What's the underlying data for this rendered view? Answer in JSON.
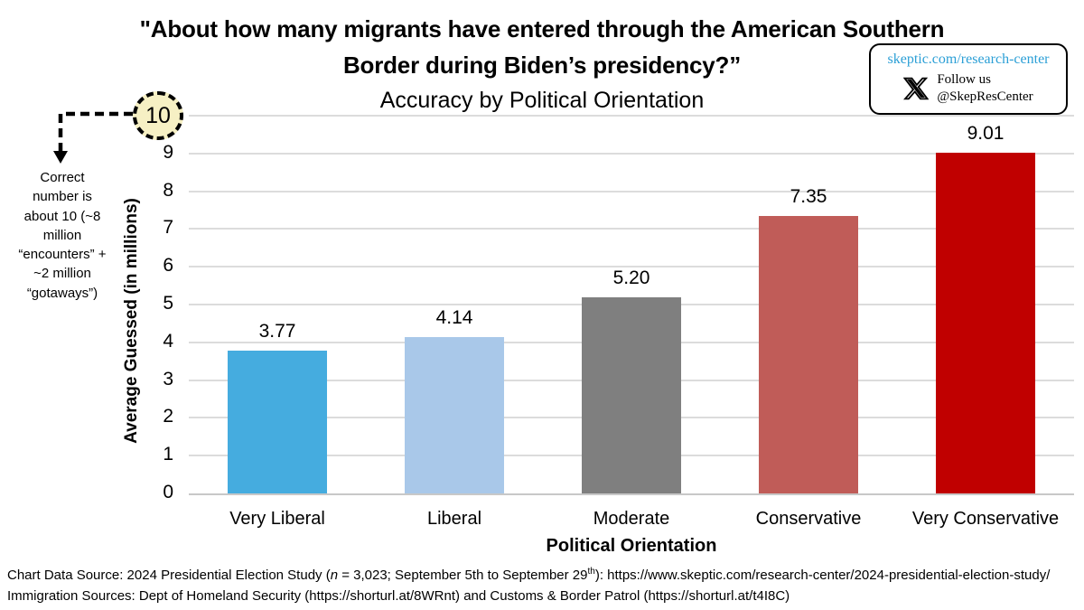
{
  "title": {
    "line1": "\"About how many migrants have entered through the American Southern",
    "line2": "Border during Biden’s presidency?”",
    "subtitle": "Accuracy by Political Orientation"
  },
  "badge": {
    "link": "skeptic.com/research-center",
    "link_color": "#2b9fd6",
    "x_icon": "x-logo",
    "follow_line1": "Follow us",
    "follow_line2": "@SkepResCenter"
  },
  "annotation": {
    "circle_label": "10",
    "circle_fill": "#f6f0c4",
    "text": "Correct\nnumber is\nabout 10 (~8\nmillion\n“encounters” +\n~2 million\n“gotaways”)"
  },
  "chart_data": {
    "type": "bar",
    "title": "\"About how many migrants have entered through the American Southern Border during Biden’s presidency?” — Accuracy by Political Orientation",
    "categories": [
      "Very Liberal",
      "Liberal",
      "Moderate",
      "Conservative",
      "Very Conservative"
    ],
    "values": [
      3.77,
      4.14,
      5.2,
      7.35,
      9.01
    ],
    "value_labels": [
      "3.77",
      "4.14",
      "5.20",
      "7.35",
      "9.01"
    ],
    "bar_colors": [
      "#45acdf",
      "#a9c8e9",
      "#7f7f7f",
      "#c05c58",
      "#c00000"
    ],
    "xlabel": "Political Orientation",
    "ylabel": "Average Guessed (in millions)",
    "ylim": [
      0,
      10
    ],
    "yticks": [
      0,
      1,
      2,
      3,
      4,
      5,
      6,
      7,
      8,
      9
    ],
    "highlighted_ytick": 10,
    "grid": true,
    "gridline_color": "#dcdcdc",
    "legend": false,
    "annotation_note": "Correct number is about 10 (~8 million “encounters” + ~2 million “gotaways”)"
  },
  "footer": {
    "line1_pre": "Chart Data Source: 2024 Presidential Election Study (",
    "line1_n": "n",
    "line1_mid": " = 3,023; September 5th to September 29",
    "line1_sup": "th",
    "line1_post": "): https://www.skeptic.com/research-center/2024-presidential-election-study/",
    "line2": "Immigration Sources: Dept of Homeland Security (https://shorturl.at/8WRnt) and Customs & Border Patrol (https://shorturl.at/t4I8C)"
  }
}
